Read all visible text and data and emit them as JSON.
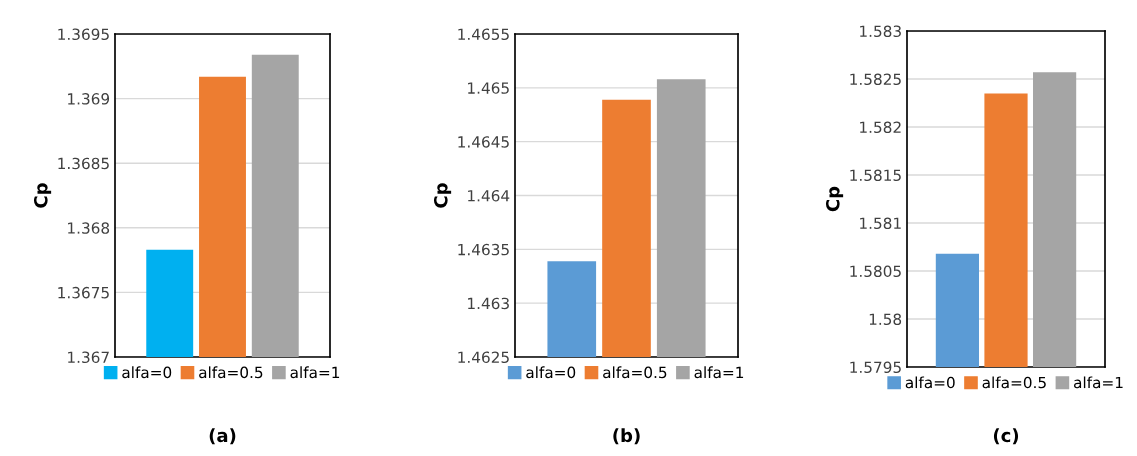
{
  "chart_data": [
    {
      "type": "bar",
      "title": "(a)",
      "ylabel": "Cp",
      "categories": [
        null
      ],
      "ylim": [
        1.367,
        1.3695
      ],
      "yticks": [
        1.367,
        1.3675,
        1.368,
        1.3685,
        1.369,
        1.3695
      ],
      "grid": "y",
      "legend": "bottom",
      "series": [
        {
          "name": "alfa=0",
          "color": "#00b0f0",
          "values": [
            1.36783
          ]
        },
        {
          "name": "alfa=0.5",
          "color": "#ed7d31",
          "values": [
            1.36917
          ]
        },
        {
          "name": "alfa=1",
          "color": "#a5a5a5",
          "values": [
            1.36934
          ]
        }
      ]
    },
    {
      "type": "bar",
      "title": "(b)",
      "ylabel": "Cp",
      "categories": [
        null
      ],
      "ylim": [
        1.4625,
        1.4655
      ],
      "yticks": [
        1.4625,
        1.463,
        1.4635,
        1.464,
        1.4645,
        1.465,
        1.4655
      ],
      "grid": "y",
      "legend": "bottom",
      "series": [
        {
          "name": "alfa=0",
          "color": "#5b9bd5",
          "values": [
            1.46339
          ]
        },
        {
          "name": "alfa=0.5",
          "color": "#ed7d31",
          "values": [
            1.46489
          ]
        },
        {
          "name": "alfa=1",
          "color": "#a5a5a5",
          "values": [
            1.46508
          ]
        }
      ]
    },
    {
      "type": "bar",
      "title": "(c)",
      "ylabel": "Cp",
      "categories": [
        null
      ],
      "ylim": [
        1.5795,
        1.583
      ],
      "yticks": [
        1.5795,
        1.58,
        1.5805,
        1.581,
        1.5815,
        1.582,
        1.5825,
        1.583
      ],
      "grid": "y",
      "legend": "bottom",
      "series": [
        {
          "name": "alfa=0",
          "color": "#5b9bd5",
          "values": [
            1.58068
          ]
        },
        {
          "name": "alfa=0.5",
          "color": "#ed7d31",
          "values": [
            1.58235
          ]
        },
        {
          "name": "alfa=1",
          "color": "#a5a5a5",
          "values": [
            1.58257
          ]
        }
      ]
    }
  ]
}
